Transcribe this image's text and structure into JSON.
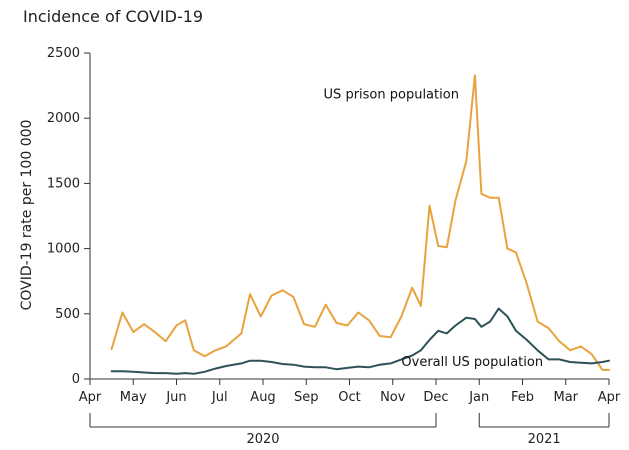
{
  "chart_data": {
    "type": "line",
    "title": "Incidence of COVID-19",
    "xlabel": "",
    "ylabel": "COVID-19 rate per 100 000",
    "ylim": [
      0,
      2500
    ],
    "y_ticks": [
      0,
      500,
      1000,
      1500,
      2000,
      2500
    ],
    "x_range_months": [
      0,
      12
    ],
    "x_tick_labels": [
      "Apr",
      "May",
      "Jun",
      "Jul",
      "Aug",
      "Sep",
      "Oct",
      "Nov",
      "Dec",
      "Jan",
      "Feb",
      "Mar",
      "Apr"
    ],
    "years": [
      {
        "label": "2020",
        "start_month": 0,
        "end_month": 8
      },
      {
        "label": "2021",
        "start_month": 9,
        "end_month": 12
      }
    ],
    "series": [
      {
        "name": "US prison population",
        "color": "#e8a33d",
        "x": [
          0.5,
          0.75,
          1,
          1.25,
          1.5,
          1.75,
          2,
          2.2,
          2.4,
          2.65,
          2.9,
          3.15,
          3.5,
          3.7,
          3.95,
          4.2,
          4.45,
          4.7,
          4.95,
          5.2,
          5.45,
          5.7,
          5.95,
          6.2,
          6.45,
          6.7,
          6.95,
          7.2,
          7.45,
          7.65,
          7.85,
          8.05,
          8.25,
          8.45,
          8.7,
          8.9,
          9.05,
          9.25,
          9.45,
          9.65,
          9.85,
          10.1,
          10.35,
          10.6,
          10.85,
          11.1,
          11.35,
          11.6,
          11.85,
          12
        ],
        "values": [
          230,
          510,
          360,
          420,
          360,
          290,
          410,
          450,
          220,
          175,
          220,
          250,
          350,
          650,
          480,
          640,
          680,
          630,
          420,
          400,
          570,
          430,
          410,
          510,
          450,
          330,
          320,
          480,
          700,
          560,
          1330,
          1020,
          1010,
          1370,
          1670,
          2330,
          1420,
          1390,
          1390,
          1000,
          970,
          730,
          440,
          390,
          290,
          220,
          250,
          190,
          70,
          70
        ]
      },
      {
        "name": "Overall US population",
        "color": "#2e5258",
        "x": [
          0.5,
          0.75,
          1,
          1.25,
          1.5,
          1.75,
          2,
          2.2,
          2.4,
          2.65,
          2.9,
          3.15,
          3.5,
          3.7,
          3.95,
          4.2,
          4.45,
          4.7,
          4.95,
          5.2,
          5.45,
          5.7,
          5.95,
          6.2,
          6.45,
          6.7,
          6.95,
          7.2,
          7.45,
          7.65,
          7.85,
          8.05,
          8.25,
          8.45,
          8.7,
          8.9,
          9.05,
          9.25,
          9.45,
          9.65,
          9.85,
          10.1,
          10.35,
          10.6,
          10.85,
          11.1,
          11.35,
          11.6,
          11.85,
          12
        ],
        "values": [
          60,
          60,
          55,
          50,
          45,
          45,
          40,
          45,
          40,
          55,
          80,
          100,
          120,
          140,
          140,
          130,
          115,
          110,
          95,
          90,
          90,
          75,
          85,
          95,
          90,
          110,
          120,
          150,
          180,
          220,
          300,
          370,
          350,
          410,
          470,
          460,
          400,
          440,
          540,
          480,
          370,
          300,
          220,
          150,
          150,
          130,
          125,
          120,
          130,
          140
        ]
      }
    ],
    "annotations": [
      {
        "text": "US prison population",
        "series": "US prison population"
      },
      {
        "text": "Overall US population",
        "series": "Overall US population"
      }
    ]
  }
}
